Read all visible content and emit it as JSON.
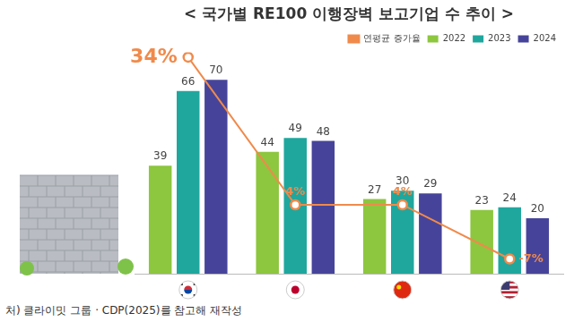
{
  "chart_data": {
    "type": "bar",
    "title": "< 국가별 RE100 이행장벽 보고기업 수 추이 >",
    "annotations": [
      "처) 클라이밋 그룹 · CDP(2025)를 참고해 재작성"
    ],
    "categories": [
      null,
      null,
      null,
      null
    ],
    "series": [
      {
        "name": "2022",
        "color": "#8dc63f",
        "values": [
          39,
          44,
          27,
          23
        ]
      },
      {
        "name": "2023",
        "color": "#1fa79e",
        "values": [
          66,
          49,
          30,
          24
        ]
      },
      {
        "name": "2024",
        "color": "#46449a",
        "values": [
          70,
          48,
          29,
          20
        ]
      },
      {
        "name": "연평균 증가율",
        "type": "line",
        "axis": "y2",
        "color": "#f08a4b",
        "marker": "circle",
        "values": [
          34,
          4,
          4,
          -7
        ],
        "value_labels": [
          "34%",
          "4%",
          "4%",
          "-7%"
        ]
      }
    ],
    "ylim": [
      0,
      80
    ],
    "yticks": [
      0,
      20,
      40,
      60,
      80
    ],
    "y2lim": [
      -10,
      35
    ],
    "y2ticks": [
      -10,
      -5,
      0,
      5,
      10,
      15,
      20,
      25,
      30,
      35
    ],
    "grid": false,
    "legend": "upper right",
    "data_labels": true,
    "tick_labels": false
  }
}
